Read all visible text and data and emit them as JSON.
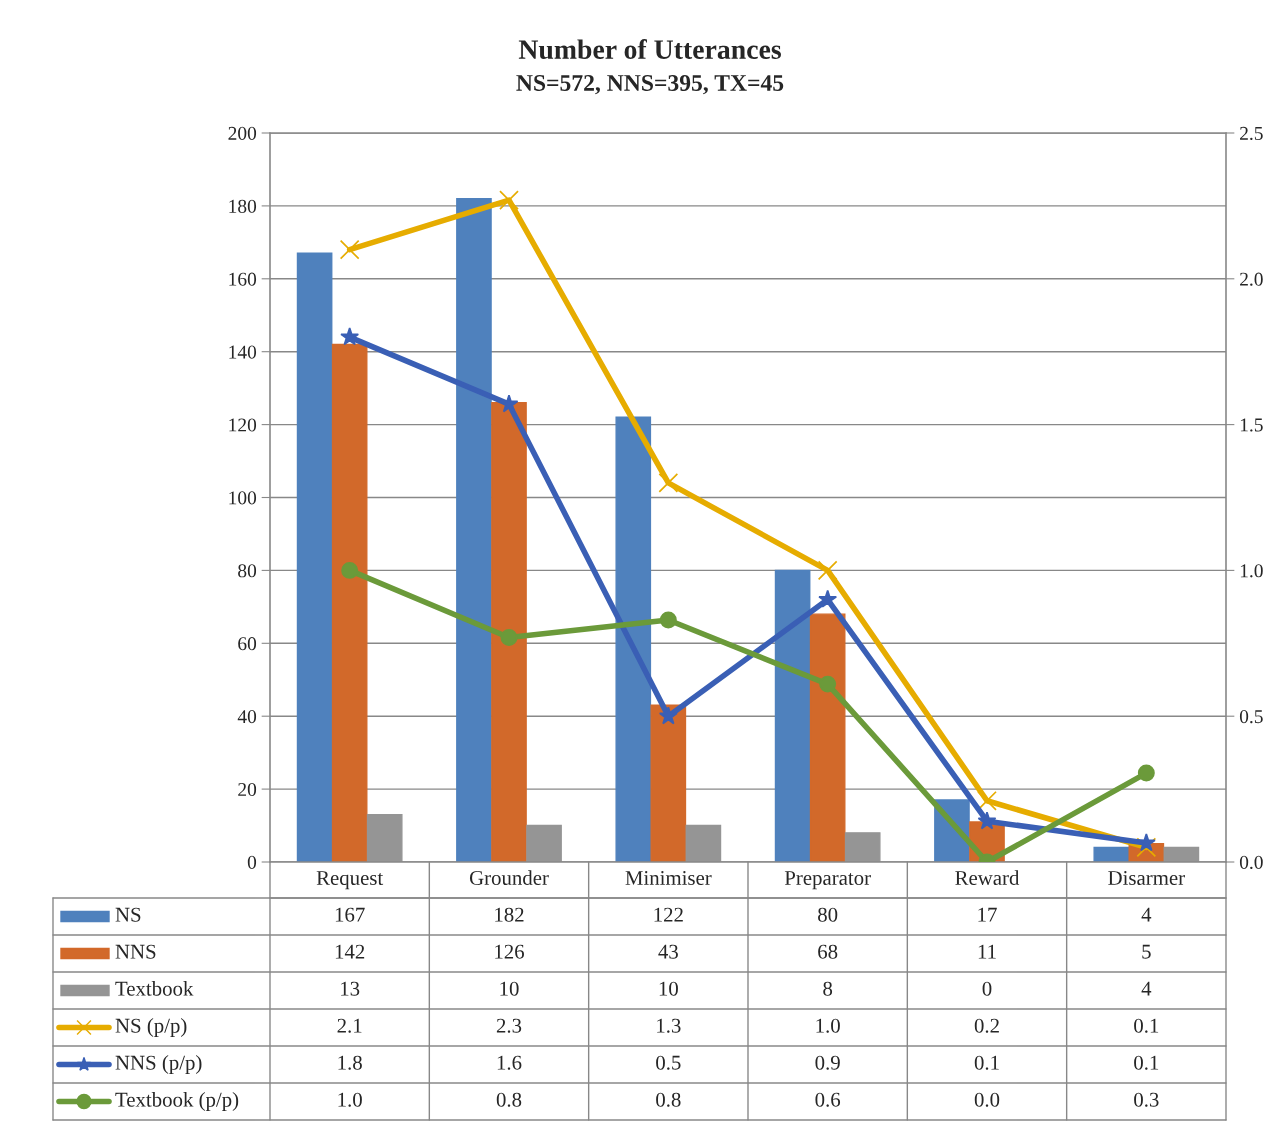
{
  "chart_data": {
    "type": "bar",
    "title": "Number of Utterances",
    "subtitle": "NS=572, NNS=395, TX=45",
    "categories": [
      "Request",
      "Grounder",
      "Minimiser",
      "Preparator",
      "Reward",
      "Disarmer"
    ],
    "series": [
      {
        "name": "NS",
        "color": "#4f81bd",
        "values": [
          167,
          182,
          122,
          80,
          17,
          4
        ],
        "value_labels": [
          "167",
          "182",
          "122",
          "80",
          "17",
          "4"
        ]
      },
      {
        "name": "NNS",
        "color": "#d2692a",
        "values": [
          142,
          126,
          43,
          68,
          11,
          5
        ],
        "value_labels": [
          "142",
          "126",
          "43",
          "68",
          "11",
          "5"
        ]
      },
      {
        "name": "Textbook",
        "color": "#959595",
        "values": [
          13,
          10,
          10,
          8,
          0,
          4
        ],
        "value_labels": [
          "13",
          "10",
          "10",
          "8",
          "0",
          "4"
        ]
      },
      {
        "name": "NS (p/p)",
        "type": "line",
        "axis": "y2",
        "marker": "cross",
        "color": "#e6ac00",
        "values": [
          2.1,
          2.27,
          1.3,
          1.0,
          0.21,
          0.05
        ],
        "value_labels": [
          "2.1",
          "2.3",
          "1.3",
          "1.0",
          "0.2",
          "0.1"
        ]
      },
      {
        "name": "NNS (p/p)",
        "type": "line",
        "axis": "y2",
        "marker": "star",
        "color": "#3a5fb5",
        "values": [
          1.8,
          1.57,
          0.5,
          0.9,
          0.14,
          0.065
        ],
        "value_labels": [
          "1.8",
          "1.6",
          "0.5",
          "0.9",
          "0.1",
          "0.1"
        ]
      },
      {
        "name": "Textbook (p/p)",
        "type": "line",
        "axis": "y2",
        "marker": "circle",
        "color": "#6b9a3a",
        "values": [
          1.0,
          0.77,
          0.83,
          0.61,
          0.0,
          0.305
        ],
        "value_labels": [
          "1.0",
          "0.8",
          "0.8",
          "0.6",
          "0.0",
          "0.3"
        ]
      }
    ],
    "ylim": [
      0,
      200
    ],
    "yticks": [
      0,
      20,
      40,
      60,
      80,
      100,
      120,
      140,
      160,
      180,
      200
    ],
    "y2lim": [
      0,
      2.5
    ],
    "y2ticks": [
      {
        "value": 0,
        "label": "0.0"
      },
      {
        "value": 0.5,
        "label": "0.5"
      },
      {
        "value": 1,
        "label": "1.0"
      },
      {
        "value": 1.5,
        "label": "1.5"
      },
      {
        "value": 2,
        "label": "2.0"
      },
      {
        "value": 2.5,
        "label": "2.5"
      }
    ],
    "grid": "y",
    "legend": "bottom"
  }
}
